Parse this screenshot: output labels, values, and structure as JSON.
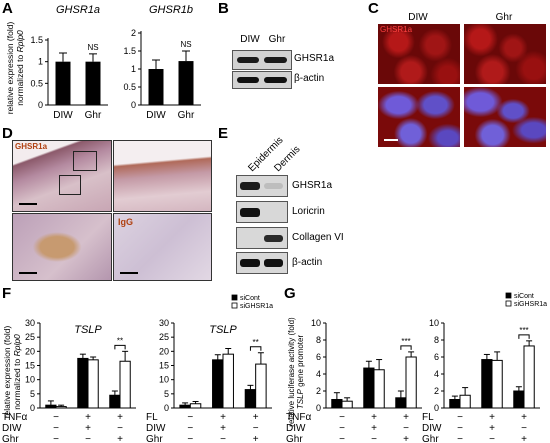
{
  "panels": {
    "A": {
      "letter": "A",
      "ylabel": "relative expression (fold) normalized to Rplp0",
      "ylabel_line1": "relative expression (fold)",
      "ylabel_line2_prefix": "normalized to ",
      "ylabel_line2_gene": "Rplp0",
      "charts": [
        {
          "title": "GHSR1a",
          "categories": [
            "DIW",
            "Ghr"
          ],
          "values": [
            1.0,
            1.0
          ],
          "errors": [
            0.2,
            0.18
          ],
          "ylim": [
            0,
            1.5
          ],
          "yticks": [
            "0",
            "0.5",
            "1",
            "1.5"
          ],
          "annotation": "NS"
        },
        {
          "title": "GHSR1b",
          "categories": [
            "DIW",
            "Ghr"
          ],
          "values": [
            1.0,
            1.22
          ],
          "errors": [
            0.25,
            0.28
          ],
          "ylim": [
            0,
            2
          ],
          "yticks": [
            "0",
            "0.5",
            "1",
            "1.5",
            "2"
          ],
          "annotation": "NS"
        }
      ]
    },
    "B": {
      "letter": "B",
      "columns": [
        "DIW",
        "Ghr"
      ],
      "bands": [
        "GHSR1a",
        "β-actin"
      ]
    },
    "C": {
      "letter": "C",
      "columns": [
        "DIW",
        "Ghr"
      ],
      "overlay_label": "GHSR1a"
    },
    "D": {
      "letter": "D",
      "label_top": "GHSR1a",
      "label_bottom": "IgG"
    },
    "E": {
      "letter": "E",
      "columns": [
        "Epidermis",
        "Dermis"
      ],
      "bands": [
        "GHSR1a",
        "Loricrin",
        "Collagen VI",
        "β-actin"
      ]
    },
    "F": {
      "letter": "F",
      "ylabel_line1": "relative expression (fold)",
      "ylabel_line2_prefix": "normalized to ",
      "ylabel_line2_gene": "Rplp0",
      "legend": [
        "siCont",
        "siGHSR1a"
      ],
      "charts": [
        {
          "title": "TSLP",
          "ylim": [
            0,
            30
          ],
          "yticks": [
            "0",
            "5",
            "10",
            "15",
            "20",
            "25",
            "30"
          ],
          "series": [
            {
              "name": "siCont",
              "values": [
                1.0,
                17.5,
                4.5
              ],
              "errors": [
                1.5,
                1.5,
                1.5
              ]
            },
            {
              "name": "siGHSR1a",
              "values": [
                0.5,
                17.0,
                16.5
              ],
              "errors": [
                0.5,
                1.0,
                3.5
              ]
            }
          ],
          "sig": "**",
          "conditions": [
            {
              "name": "TNFα",
              "signs": [
                "−",
                "+",
                "+"
              ]
            },
            {
              "name": "DIW",
              "signs": [
                "−",
                "+",
                "−"
              ]
            },
            {
              "name": "Ghr",
              "signs": [
                "−",
                "−",
                "+"
              ]
            }
          ]
        },
        {
          "title": "TSLP",
          "ylim": [
            0,
            30
          ],
          "yticks": [
            "0",
            "5",
            "10",
            "15",
            "20",
            "25",
            "30"
          ],
          "series": [
            {
              "name": "siCont",
              "values": [
                1.0,
                17.0,
                6.5
              ],
              "errors": [
                0.8,
                1.8,
                1.5
              ]
            },
            {
              "name": "siGHSR1a",
              "values": [
                1.5,
                19.0,
                15.5
              ],
              "errors": [
                0.8,
                2.0,
                4.0
              ]
            }
          ],
          "sig": "**",
          "conditions": [
            {
              "name": "FL",
              "signs": [
                "−",
                "+",
                "+"
              ]
            },
            {
              "name": "DIW",
              "signs": [
                "−",
                "+",
                "−"
              ]
            },
            {
              "name": "Ghr",
              "signs": [
                "−",
                "−",
                "+"
              ]
            }
          ]
        }
      ]
    },
    "G": {
      "letter": "G",
      "ylabel_line1": "relative luciferase activity (fold)",
      "ylabel_line2_gene": "TSLP",
      "ylabel_line2_suffix": " gene promoter",
      "legend": [
        "siCont",
        "siGHSR1a"
      ],
      "charts": [
        {
          "ylim": [
            0,
            10
          ],
          "yticks": [
            "0",
            "2",
            "4",
            "6",
            "8",
            "10"
          ],
          "series": [
            {
              "name": "siCont",
              "values": [
                1.0,
                4.7,
                1.2
              ],
              "errors": [
                0.8,
                0.8,
                0.8
              ]
            },
            {
              "name": "siGHSR1a",
              "values": [
                0.8,
                4.5,
                6.0
              ],
              "errors": [
                0.4,
                1.2,
                0.6
              ]
            }
          ],
          "sig": "***",
          "conditions": [
            {
              "name": "TNFα",
              "signs": [
                "−",
                "+",
                "+"
              ]
            },
            {
              "name": "DIW",
              "signs": [
                "−",
                "+",
                "−"
              ]
            },
            {
              "name": "Ghr",
              "signs": [
                "−",
                "−",
                "+"
              ]
            }
          ]
        },
        {
          "ylim": [
            0,
            10
          ],
          "yticks": [
            "0",
            "2",
            "4",
            "6",
            "8",
            "10"
          ],
          "series": [
            {
              "name": "siCont",
              "values": [
                1.0,
                5.7,
                2.0
              ],
              "errors": [
                0.4,
                0.6,
                0.5
              ]
            },
            {
              "name": "siGHSR1a",
              "values": [
                1.5,
                5.6,
                7.3
              ],
              "errors": [
                0.9,
                1.0,
                0.6
              ]
            }
          ],
          "sig": "***",
          "conditions": [
            {
              "name": "FL",
              "signs": [
                "−",
                "+",
                "+"
              ]
            },
            {
              "name": "DIW",
              "signs": [
                "−",
                "+",
                "−"
              ]
            },
            {
              "name": "Ghr",
              "signs": [
                "−",
                "−",
                "+"
              ]
            }
          ]
        }
      ]
    }
  },
  "chart_data": [
    {
      "type": "bar",
      "title": "GHSR1a",
      "categories": [
        "DIW",
        "Ghr"
      ],
      "values": [
        1.0,
        1.0
      ],
      "ylim": [
        0,
        1.5
      ],
      "ylabel": "relative expression (fold) normalized to Rplp0"
    },
    {
      "type": "bar",
      "title": "GHSR1b",
      "categories": [
        "DIW",
        "Ghr"
      ],
      "values": [
        1.0,
        1.22
      ],
      "ylim": [
        0,
        2
      ],
      "ylabel": "relative expression (fold) normalized to Rplp0"
    },
    {
      "type": "bar",
      "title": "TSLP",
      "categories": [
        "TNFα− DIW− Ghr−",
        "TNFα+ DIW+ Ghr−",
        "TNFα+ DIW− Ghr+"
      ],
      "series": [
        {
          "name": "siCont",
          "values": [
            1.0,
            17.5,
            4.5
          ]
        },
        {
          "name": "siGHSR1a",
          "values": [
            0.5,
            17.0,
            16.5
          ]
        }
      ],
      "ylim": [
        0,
        30
      ]
    },
    {
      "type": "bar",
      "title": "TSLP",
      "categories": [
        "FL− DIW− Ghr−",
        "FL+ DIW+ Ghr−",
        "FL+ DIW− Ghr+"
      ],
      "series": [
        {
          "name": "siCont",
          "values": [
            1.0,
            17.0,
            6.5
          ]
        },
        {
          "name": "siGHSR1a",
          "values": [
            1.5,
            19.0,
            15.5
          ]
        }
      ],
      "ylim": [
        0,
        30
      ]
    },
    {
      "type": "bar",
      "categories": [
        "TNFα− DIW− Ghr−",
        "TNFα+ DIW+ Ghr−",
        "TNFα+ DIW− Ghr+"
      ],
      "series": [
        {
          "name": "siCont",
          "values": [
            1.0,
            4.7,
            1.2
          ]
        },
        {
          "name": "siGHSR1a",
          "values": [
            0.8,
            4.5,
            6.0
          ]
        }
      ],
      "ylim": [
        0,
        10
      ],
      "ylabel": "relative luciferase activity (fold) TSLP gene promoter"
    },
    {
      "type": "bar",
      "categories": [
        "FL− DIW− Ghr−",
        "FL+ DIW+ Ghr−",
        "FL+ DIW− Ghr+"
      ],
      "series": [
        {
          "name": "siCont",
          "values": [
            1.0,
            5.7,
            2.0
          ]
        },
        {
          "name": "siGHSR1a",
          "values": [
            1.5,
            5.6,
            7.3
          ]
        }
      ],
      "ylim": [
        0,
        10
      ],
      "ylabel": "relative luciferase activity (fold) TSLP gene promoter"
    }
  ]
}
